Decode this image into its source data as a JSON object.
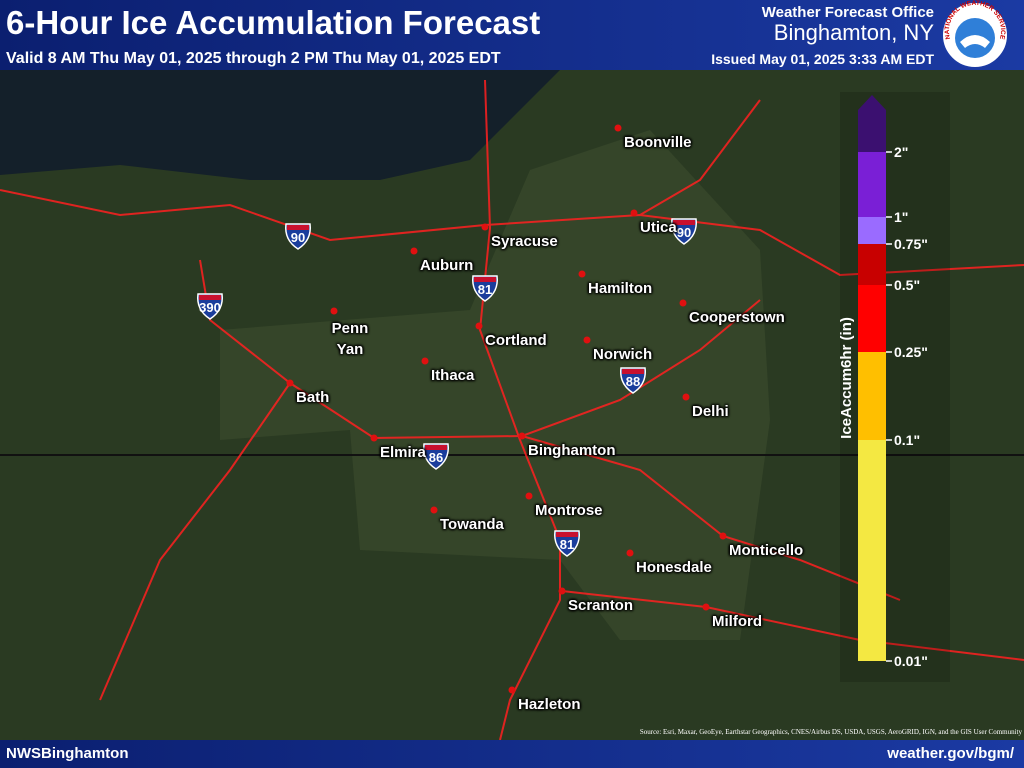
{
  "header": {
    "title": "6-Hour Ice Accumulation Forecast",
    "valid": "Valid 8 AM Thu May 01, 2025 through 2 PM Thu May 01, 2025 EDT",
    "office": "Weather Forecast Office",
    "office_location": "Binghamton, NY",
    "issued": "Issued May 01, 2025 3:33 AM EDT",
    "logo_text": "NATIONAL WEATHER SERVICE"
  },
  "map": {
    "cities": [
      "Boonville",
      "Syracuse",
      "Utica",
      "Auburn",
      "Hamilton",
      "Cooperstown",
      "Penn Yan",
      "Cortland",
      "Norwich",
      "Ithaca",
      "Bath",
      "Delhi",
      "Elmira",
      "Binghamton",
      "Montrose",
      "Towanda",
      "Monticello",
      "Honesdale",
      "Scranton",
      "Milford",
      "Hazleton"
    ],
    "interstates": [
      "90",
      "390",
      "81",
      "88",
      "86",
      "81",
      "90"
    ]
  },
  "legend": {
    "title": "IceAccum6hr (in)",
    "labels": [
      "0.01\"",
      "0.1\"",
      "0.25\"",
      "0.5\"",
      "0.75\"",
      "1\"",
      "2\""
    ],
    "colors": [
      "#f4e842",
      "#ffbf00",
      "#ff0000",
      "#c80000",
      "#9a6bff",
      "#7a1fd6",
      "#3b1070"
    ]
  },
  "footer": {
    "left": "NWSBinghamton",
    "right": "weather.gov/bgm/",
    "attribution": "Source: Esri, Maxar, GeoEye, Earthstar Geographics, CNES/Airbus DS, USDA, USGS, AeroGRID, IGN, and the GIS User Community"
  }
}
